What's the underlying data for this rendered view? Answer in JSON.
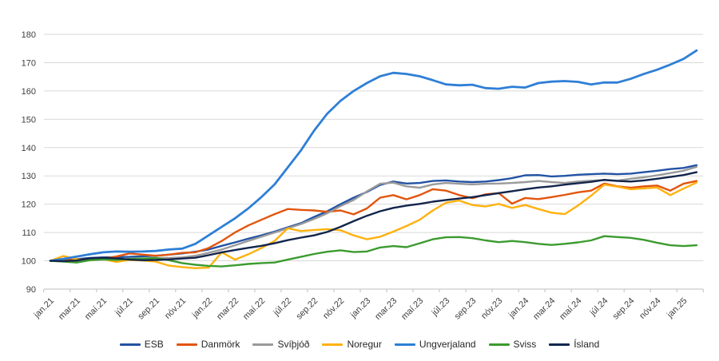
{
  "chart_data": {
    "type": "line",
    "title": "",
    "xlabel": "",
    "ylabel": "",
    "grid": true,
    "legend_position": "bottom",
    "ylim": [
      90,
      180
    ],
    "yticks": [
      90,
      100,
      110,
      120,
      130,
      140,
      150,
      160,
      170,
      180
    ],
    "x_tick_every": 2,
    "categories": [
      "jan.21",
      "feb.21",
      "mar.21",
      "apr.21",
      "maí.21",
      "jún.21",
      "júl.21",
      "ágú.21",
      "sep.21",
      "okt.21",
      "nóv.21",
      "des.21",
      "jan.22",
      "feb.22",
      "mar.22",
      "apr.22",
      "maí.22",
      "jún.22",
      "júl.22",
      "ágú.22",
      "sep.22",
      "okt.22",
      "nóv.22",
      "des.22",
      "jan.23",
      "feb.23",
      "mar.23",
      "apr.23",
      "maí.23",
      "jún.23",
      "júl.23",
      "ágú.23",
      "sep.23",
      "okt.23",
      "nóv.23",
      "des.23",
      "jan.24",
      "feb.24",
      "mar.24",
      "apr.24",
      "maí.24",
      "jún.24",
      "júl.24",
      "ágú.24",
      "sep.24",
      "okt.24",
      "nóv.24",
      "des.24",
      "jan.25",
      "feb.25"
    ],
    "series": [
      {
        "name": "ESB",
        "color": "#2353a4",
        "values": [
          100,
          100.2,
          100.6,
          101,
          101.2,
          101.3,
          101.4,
          101.6,
          101.8,
          102.2,
          102.6,
          103.2,
          104,
          105.3,
          106.5,
          107.8,
          109,
          110.3,
          111.8,
          113.3,
          115.5,
          117.5,
          120,
          122.3,
          124.3,
          126.8,
          128,
          127.3,
          127.5,
          128.2,
          128.4,
          128,
          127.8,
          128,
          128.5,
          129.2,
          130.2,
          130.3,
          129.8,
          130,
          130.4,
          130.6,
          130.8,
          130.6,
          130.8,
          131.3,
          131.8,
          132.4,
          132.8,
          133.8
        ]
      },
      {
        "name": "Danmörk",
        "color": "#e2550e",
        "values": [
          100,
          100.2,
          100.5,
          100.4,
          100.8,
          101.5,
          102.6,
          102.2,
          101.8,
          102.2,
          102.8,
          103,
          104.5,
          107,
          110,
          112.5,
          114.5,
          116.5,
          118.3,
          118,
          117.8,
          117.3,
          117.8,
          116.4,
          118.5,
          122.3,
          123.2,
          121.7,
          123.2,
          125.3,
          124.8,
          123.2,
          122.1,
          123.5,
          123.9,
          120.2,
          122.2,
          121.8,
          122.5,
          123.3,
          124.2,
          124.8,
          127.3,
          126.3,
          125.8,
          126.3,
          126.6,
          124.8,
          127.2,
          128.2
        ]
      },
      {
        "name": "Svíþjóð",
        "color": "#9a9a9a",
        "values": [
          100,
          99.8,
          100,
          100.3,
          100.5,
          100.3,
          100.5,
          100.7,
          101,
          101,
          101.2,
          101.8,
          102.8,
          104,
          105.5,
          107,
          108.5,
          110,
          111.5,
          113,
          114.8,
          116.8,
          119.3,
          121.5,
          124.5,
          127.2,
          127.6,
          126.3,
          125.8,
          127,
          127.5,
          127.2,
          127,
          127.2,
          127.3,
          127.5,
          127.8,
          128.2,
          127.8,
          127.5,
          128,
          128.3,
          128.5,
          128.3,
          129,
          129.5,
          130.2,
          131,
          131.8,
          133.2
        ]
      },
      {
        "name": "Noregur",
        "color": "#ffb10e",
        "values": [
          100,
          101.7,
          100.5,
          100.2,
          100.6,
          99.6,
          100.3,
          100.1,
          99.7,
          98.3,
          97.8,
          97.4,
          97.6,
          103,
          100.4,
          102.3,
          104.5,
          107,
          111.5,
          110.5,
          110.9,
          111.2,
          110.8,
          109,
          107.6,
          108.5,
          110.3,
          112.3,
          114.5,
          117.8,
          120.5,
          121.3,
          119.7,
          119.2,
          120.1,
          118.7,
          119.7,
          118.3,
          117,
          116.5,
          119.5,
          123,
          126.9,
          126.2,
          125.3,
          125.6,
          125.9,
          123.2,
          125.5,
          127.7
        ]
      },
      {
        "name": "Ungverjaland",
        "color": "#2e7fd6",
        "values": [
          100,
          100.7,
          101.5,
          102.3,
          103,
          103.3,
          103.2,
          103.3,
          103.5,
          104,
          104.3,
          106,
          109,
          112,
          115,
          118.5,
          122.5,
          127,
          133,
          139,
          146,
          152,
          156.5,
          160,
          162.8,
          165.2,
          166.4,
          166,
          165.2,
          163.8,
          162.3,
          162,
          162.2,
          161,
          160.8,
          161.5,
          161.2,
          162.8,
          163.3,
          163.5,
          163.2,
          162.3,
          163,
          163,
          164.3,
          166,
          167.5,
          169.3,
          171.3,
          174.3
        ]
      },
      {
        "name": "Sviss",
        "color": "#3c9b2f",
        "values": [
          100,
          99.7,
          99.4,
          100.2,
          100.5,
          100.3,
          100.7,
          100.8,
          101,
          100.2,
          99.2,
          98.6,
          98.2,
          98,
          98.4,
          98.9,
          99.2,
          99.4,
          100.4,
          101.4,
          102.4,
          103.2,
          103.7,
          103.1,
          103.3,
          104.7,
          105.2,
          104.8,
          106.2,
          107.6,
          108.3,
          108.4,
          108,
          107.2,
          106.6,
          107,
          106.6,
          106,
          105.6,
          106,
          106.5,
          107.2,
          108.7,
          108.4,
          108.1,
          107.4,
          106.4,
          105.5,
          105.2,
          105.5
        ]
      },
      {
        "name": "Ísland",
        "color": "#12254c",
        "values": [
          100,
          99.9,
          100.1,
          100.9,
          101.1,
          100.9,
          100.4,
          100.2,
          100.3,
          100.5,
          100.8,
          101.1,
          102,
          103,
          103.8,
          104.6,
          105.3,
          106.2,
          107.3,
          108.2,
          109,
          110.2,
          112,
          114,
          115.9,
          117.5,
          118.7,
          119.5,
          120.1,
          120.9,
          121.5,
          122,
          122.5,
          123.2,
          123.9,
          124.6,
          125.3,
          125.9,
          126.3,
          126.9,
          127.4,
          127.9,
          128.6,
          128.2,
          128,
          128.4,
          129,
          129.6,
          130.3,
          131.3
        ]
      }
    ]
  },
  "style": {
    "background": "#ffffff",
    "gridline_color": "#d9d9d9",
    "axis_color": "#bfbfbf",
    "tick_label_color": "#404040",
    "legend_text_color": "#262626"
  }
}
